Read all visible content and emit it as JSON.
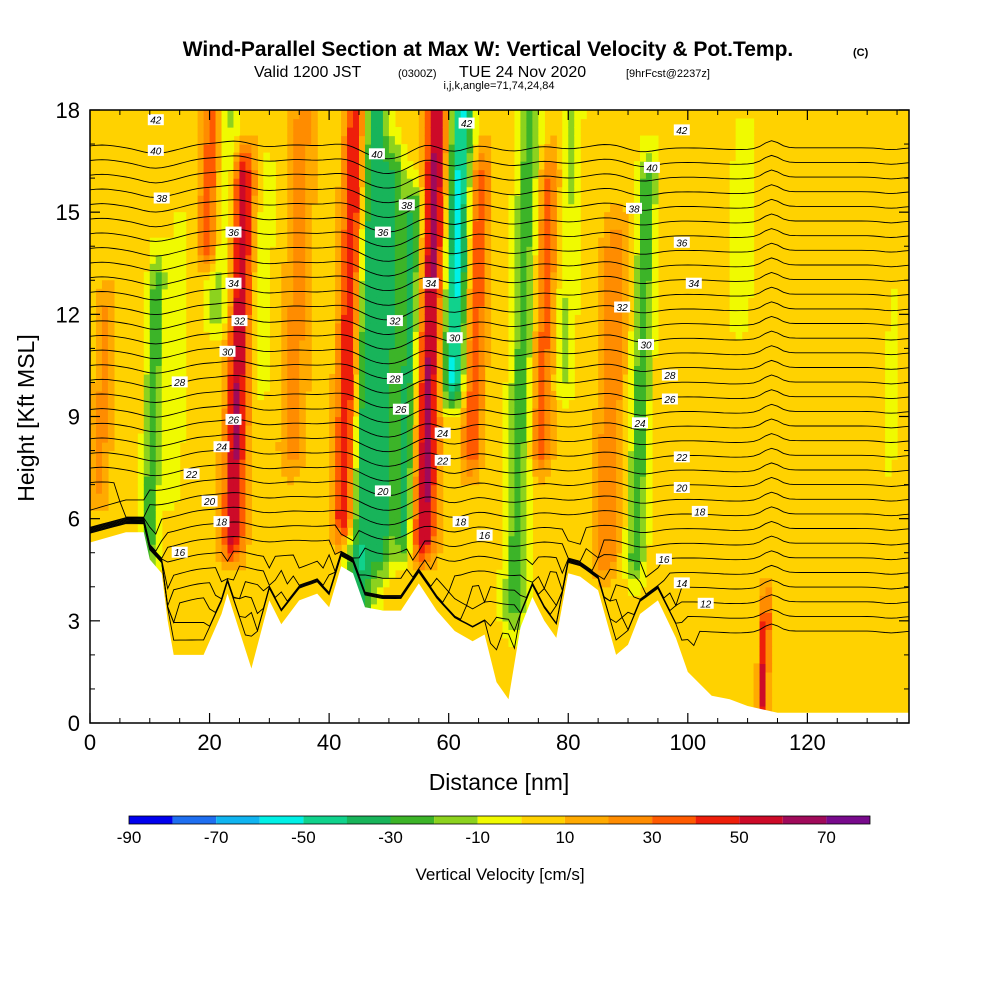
{
  "title": {
    "main": "Wind-Parallel Section at Max W: Vertical Velocity & Pot.Temp.",
    "copyright": "(C)",
    "valid_prefix": "Valid 1200 JST",
    "utc": "(0300Z)",
    "valid_date": "TUE 24 Nov 2020",
    "forecast": "[9hrFcst@2237z]",
    "indices": "i,j,k,angle=71,74,24,84"
  },
  "colors": {
    "terrain": "#ffffff",
    "contour": "#000000",
    "palette": [
      "#0000ee",
      "#1e6ef0",
      "#10b4f0",
      "#00f0e6",
      "#10d28c",
      "#18b45a",
      "#3cb428",
      "#8cd21e",
      "#f0fa00",
      "#ffd200",
      "#ffaa00",
      "#ff8c00",
      "#ff5a00",
      "#ee1e0a",
      "#cd0a28",
      "#a00a5a",
      "#780a8c"
    ]
  },
  "chart_data": {
    "type": "heatmap",
    "xlabel": "Distance [nm]",
    "ylabel": "Height [Kft MSL]",
    "xlim": [
      0,
      137
    ],
    "ylim": [
      0,
      18
    ],
    "x_ticks": [
      "0",
      "20",
      "40",
      "60",
      "80",
      "100",
      "120"
    ],
    "y_ticks": [
      "0",
      "3",
      "6",
      "9",
      "12",
      "15",
      "18"
    ],
    "x_tick_values": [
      0,
      20,
      40,
      60,
      80,
      100,
      120
    ],
    "y_tick_values": [
      0,
      3,
      6,
      9,
      12,
      15,
      18
    ],
    "colorbar": {
      "title": "Vertical Velocity [cm/s]",
      "bounds": [
        -90,
        80
      ],
      "step": 10,
      "labels": [
        "-90",
        "-70",
        "-50",
        "-30",
        "-10",
        "10",
        "30",
        "50",
        "70"
      ],
      "label_values": [
        -90,
        -70,
        -50,
        -30,
        -10,
        10,
        30,
        50,
        70
      ]
    },
    "background_w": 5,
    "velocity_bands": [
      {
        "x": 2,
        "w": 18,
        "width": 1.5,
        "zmin": 7,
        "zmax": 12
      },
      {
        "x": 10.5,
        "w": -32,
        "width": 1.4,
        "zmin": 4.6,
        "zmax": 13
      },
      {
        "x": 14,
        "w": -14,
        "width": 1.6,
        "zmin": 7,
        "zmax": 14
      },
      {
        "x": 19,
        "w": 38,
        "width": 1.8,
        "zmin": 14,
        "zmax": 18
      },
      {
        "x": 21,
        "w": -22,
        "width": 2.2,
        "zmin": 12,
        "zmax": 18
      },
      {
        "x": 24.5,
        "w": 56,
        "width": 1.8,
        "zmin": 5.5,
        "zmax": 16
      },
      {
        "x": 28,
        "w": -10,
        "width": 2.0,
        "zmin": 10,
        "zmax": 16
      },
      {
        "x": 34,
        "w": 20,
        "width": 2.0,
        "zmin": 8,
        "zmax": 18
      },
      {
        "x": 43,
        "w": 52,
        "width": 1.8,
        "zmin": 6,
        "zmax": 18
      },
      {
        "x": 46,
        "w": -45,
        "width": 2.4,
        "zmin": 3.4,
        "zmax": 18
      },
      {
        "x": 49.5,
        "w": -35,
        "width": 1.8,
        "zmin": 5,
        "zmax": 16
      },
      {
        "x": 53,
        "w": -40,
        "width": 1.6,
        "zmin": 5.5,
        "zmax": 15
      },
      {
        "x": 56.5,
        "w": 58,
        "width": 1.9,
        "zmin": 5.5,
        "zmax": 18
      },
      {
        "x": 60.5,
        "w": -58,
        "width": 2.0,
        "zmin": 10,
        "zmax": 18
      },
      {
        "x": 64,
        "w": 35,
        "width": 1.6,
        "zmin": 8,
        "zmax": 16
      },
      {
        "x": 72,
        "w": -30,
        "width": 2.0,
        "zmin": 3.3,
        "zmax": 18
      },
      {
        "x": 75.5,
        "w": 30,
        "width": 1.8,
        "zmin": 8,
        "zmax": 16
      },
      {
        "x": 79,
        "w": -16,
        "width": 1.8,
        "zmin": 10,
        "zmax": 18
      },
      {
        "x": 87,
        "w": 25,
        "width": 2.0,
        "zmin": 5,
        "zmax": 14
      },
      {
        "x": 92,
        "w": -32,
        "width": 1.6,
        "zmin": 4.8,
        "zmax": 16
      },
      {
        "x": 108,
        "w": -12,
        "width": 2.0,
        "zmin": 12,
        "zmax": 17
      },
      {
        "x": 114,
        "w": 48,
        "width": 0.8,
        "zmin": 0.5,
        "zmax": 3
      },
      {
        "x": 134,
        "w": -12,
        "width": 1.0,
        "zmin": 8,
        "zmax": 12
      }
    ],
    "terrain_profile": {
      "x": [
        0,
        6,
        9,
        10,
        12,
        13,
        14,
        19,
        22,
        23,
        27,
        30,
        32,
        35,
        38,
        40,
        42,
        44,
        46,
        49,
        52,
        55,
        58,
        61,
        64,
        66,
        68,
        70,
        72,
        74,
        76,
        78,
        80,
        82,
        85,
        88,
        90,
        92,
        95,
        98,
        100,
        104,
        107,
        110,
        115,
        120,
        128,
        137
      ],
      "height": [
        5.3,
        5.6,
        5.6,
        4.8,
        4.4,
        3.0,
        2.0,
        2.0,
        3.2,
        3.8,
        1.6,
        3.6,
        2.9,
        3.6,
        3.8,
        3.4,
        4.6,
        4.4,
        3.4,
        3.3,
        3.3,
        4.1,
        3.3,
        2.7,
        2.4,
        2.6,
        1.2,
        0.7,
        2.8,
        3.7,
        3.0,
        2.5,
        4.4,
        4.3,
        3.9,
        2.0,
        2.3,
        3.2,
        3.6,
        2.5,
        1.5,
        0.8,
        0.7,
        0.5,
        0.3,
        0.3,
        0.3,
        0.3
      ]
    },
    "contour_interval": 1,
    "contour_range": [
      10,
      43
    ],
    "contour_labels": [
      {
        "text": "42",
        "x": 11,
        "y": 17.7
      },
      {
        "text": "40",
        "x": 11,
        "y": 16.8
      },
      {
        "text": "38",
        "x": 12,
        "y": 15.4
      },
      {
        "text": "36",
        "x": 24,
        "y": 14.4
      },
      {
        "text": "34",
        "x": 24,
        "y": 12.9
      },
      {
        "text": "32",
        "x": 25,
        "y": 11.8
      },
      {
        "text": "30",
        "x": 23,
        "y": 10.9
      },
      {
        "text": "28",
        "x": 15,
        "y": 10.0
      },
      {
        "text": "26",
        "x": 24,
        "y": 8.9
      },
      {
        "text": "24",
        "x": 22,
        "y": 8.1
      },
      {
        "text": "22",
        "x": 17,
        "y": 7.3
      },
      {
        "text": "20",
        "x": 20,
        "y": 6.5
      },
      {
        "text": "18",
        "x": 22,
        "y": 5.9
      },
      {
        "text": "16",
        "x": 15,
        "y": 5.0
      },
      {
        "text": "40",
        "x": 48,
        "y": 16.7
      },
      {
        "text": "42",
        "x": 63,
        "y": 17.6
      },
      {
        "text": "38",
        "x": 53,
        "y": 15.2
      },
      {
        "text": "36",
        "x": 49,
        "y": 14.4
      },
      {
        "text": "34",
        "x": 57,
        "y": 12.9
      },
      {
        "text": "32",
        "x": 51,
        "y": 11.8
      },
      {
        "text": "30",
        "x": 61,
        "y": 11.3
      },
      {
        "text": "28",
        "x": 51,
        "y": 10.1
      },
      {
        "text": "26",
        "x": 52,
        "y": 9.2
      },
      {
        "text": "24",
        "x": 59,
        "y": 8.5
      },
      {
        "text": "22",
        "x": 59,
        "y": 7.7
      },
      {
        "text": "20",
        "x": 49,
        "y": 6.8
      },
      {
        "text": "18",
        "x": 62,
        "y": 5.9
      },
      {
        "text": "16",
        "x": 66,
        "y": 5.5
      },
      {
        "text": "42",
        "x": 99,
        "y": 17.4
      },
      {
        "text": "40",
        "x": 94,
        "y": 16.3
      },
      {
        "text": "38",
        "x": 91,
        "y": 15.1
      },
      {
        "text": "36",
        "x": 99,
        "y": 14.1
      },
      {
        "text": "34",
        "x": 101,
        "y": 12.9
      },
      {
        "text": "32",
        "x": 89,
        "y": 12.2
      },
      {
        "text": "30",
        "x": 93,
        "y": 11.1
      },
      {
        "text": "28",
        "x": 97,
        "y": 10.2
      },
      {
        "text": "26",
        "x": 97,
        "y": 9.5
      },
      {
        "text": "24",
        "x": 92,
        "y": 8.8
      },
      {
        "text": "22",
        "x": 99,
        "y": 7.8
      },
      {
        "text": "20",
        "x": 99,
        "y": 6.9
      },
      {
        "text": "18",
        "x": 102,
        "y": 6.2
      },
      {
        "text": "16",
        "x": 96,
        "y": 4.8
      },
      {
        "text": "14",
        "x": 99,
        "y": 4.1
      },
      {
        "text": "12",
        "x": 103,
        "y": 3.5
      }
    ]
  }
}
